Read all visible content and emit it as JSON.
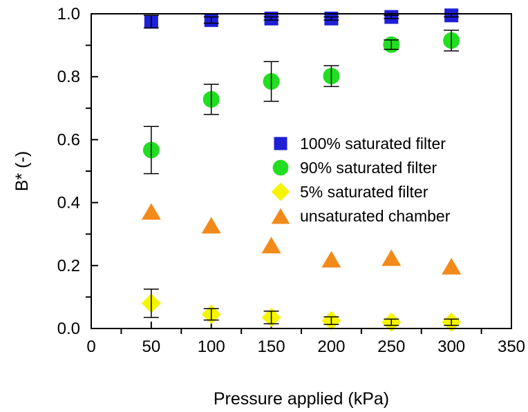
{
  "chart_data": {
    "type": "scatter",
    "title": "",
    "xlabel": "Pressure applied (kPa)",
    "ylabel": "B* (-)",
    "xlim": [
      0,
      350
    ],
    "ylim": [
      0.0,
      1.0
    ],
    "xticks": [
      "0",
      "50",
      "100",
      "150",
      "200",
      "250",
      "300",
      "350"
    ],
    "yticks": [
      "0.0",
      "0.2",
      "0.4",
      "0.6",
      "0.8",
      "1.0"
    ],
    "grid": false,
    "legend_position": "center-right",
    "series": [
      {
        "name": "100% saturated filter",
        "marker": "square",
        "color": "#1f1fd6",
        "x": [
          50,
          100,
          150,
          200,
          250,
          300
        ],
        "y": [
          0.975,
          0.98,
          0.985,
          0.985,
          0.99,
          0.995
        ],
        "err": [
          0.02,
          0.01,
          0.005,
          0.005,
          0.005,
          0.005
        ]
      },
      {
        "name": "90% saturated filter",
        "marker": "circle",
        "color": "#22dd22",
        "x": [
          50,
          100,
          150,
          200,
          250,
          300
        ],
        "y": [
          0.567,
          0.728,
          0.785,
          0.802,
          0.902,
          0.915
        ],
        "err": [
          0.075,
          0.048,
          0.063,
          0.033,
          0.015,
          0.033
        ]
      },
      {
        "name": "5% saturated filter",
        "marker": "diamond",
        "color": "#f5f500",
        "x": [
          50,
          100,
          150,
          200,
          250,
          300
        ],
        "y": [
          0.08,
          0.045,
          0.035,
          0.025,
          0.02,
          0.02
        ],
        "err": [
          0.045,
          0.018,
          0.02,
          0.012,
          0.01,
          0.01
        ]
      },
      {
        "name": "unsaturated chamber",
        "marker": "triangle",
        "color": "#f28a1a",
        "x": [
          50,
          100,
          150,
          200,
          250,
          300
        ],
        "y": [
          0.372,
          0.328,
          0.265,
          0.22,
          0.225,
          0.198
        ],
        "err": []
      }
    ]
  }
}
